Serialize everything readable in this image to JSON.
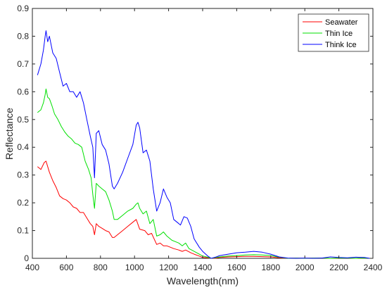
{
  "chart_data": {
    "type": "line",
    "xlabel": "Wavelength(nm)",
    "ylabel": "Reflectance",
    "xlim": [
      400,
      2400
    ],
    "ylim": [
      0,
      0.9
    ],
    "xticks": [
      400,
      600,
      800,
      1000,
      1200,
      1400,
      1600,
      1800,
      2000,
      2200,
      2400
    ],
    "yticks": [
      0,
      0.1,
      0.2,
      0.3,
      0.4,
      0.5,
      0.6,
      0.7,
      0.8,
      0.9
    ],
    "ytick_labels": [
      "0",
      "0.1",
      "0.2",
      "0.3",
      "0.4",
      "0.5",
      "0.6",
      "0.7",
      "0.8",
      "0.9"
    ],
    "grid": false,
    "legend_position": "top-right",
    "series": [
      {
        "name": "Seawater",
        "color": "#ff0000",
        "x": [
          430,
          450,
          470,
          480,
          500,
          520,
          540,
          560,
          580,
          600,
          620,
          640,
          660,
          680,
          700,
          720,
          740,
          755,
          765,
          775,
          790,
          810,
          830,
          850,
          870,
          880,
          900,
          930,
          960,
          990,
          1010,
          1030,
          1060,
          1080,
          1100,
          1130,
          1150,
          1170,
          1190,
          1210,
          1230,
          1260,
          1280,
          1300,
          1330,
          1350,
          1380,
          1400,
          1430,
          1450,
          1480,
          1500,
          1550,
          1600,
          1650,
          1700,
          1750,
          1800,
          1850,
          1900,
          1950,
          2000,
          2050,
          2100,
          2150,
          2200,
          2250,
          2300,
          2350,
          2380
        ],
        "y": [
          0.33,
          0.32,
          0.345,
          0.35,
          0.31,
          0.28,
          0.255,
          0.225,
          0.215,
          0.21,
          0.2,
          0.185,
          0.18,
          0.165,
          0.165,
          0.145,
          0.125,
          0.115,
          0.085,
          0.125,
          0.115,
          0.108,
          0.1,
          0.095,
          0.075,
          0.075,
          0.085,
          0.1,
          0.115,
          0.13,
          0.14,
          0.105,
          0.1,
          0.085,
          0.09,
          0.05,
          0.055,
          0.045,
          0.045,
          0.04,
          0.035,
          0.03,
          0.025,
          0.03,
          0.02,
          0.015,
          0.008,
          0.003,
          0.002,
          0.0,
          0.001,
          0.003,
          0.005,
          0.006,
          0.007,
          0.007,
          0.006,
          0.005,
          0.002,
          0.0,
          0.001,
          0.0,
          0.001,
          0.001,
          0.0,
          0.001,
          0.001,
          0.0,
          0.001,
          0.0
        ]
      },
      {
        "name": "Thin Ice",
        "color": "#00e000",
        "x": [
          430,
          450,
          465,
          475,
          480,
          490,
          500,
          515,
          530,
          550,
          570,
          590,
          610,
          630,
          650,
          670,
          690,
          710,
          730,
          745,
          755,
          765,
          775,
          790,
          810,
          830,
          850,
          870,
          880,
          900,
          930,
          960,
          990,
          1010,
          1020,
          1030,
          1050,
          1070,
          1090,
          1110,
          1130,
          1150,
          1170,
          1190,
          1220,
          1240,
          1260,
          1280,
          1300,
          1320,
          1350,
          1380,
          1400,
          1430,
          1450,
          1480,
          1500,
          1550,
          1600,
          1650,
          1700,
          1750,
          1800,
          1850,
          1900,
          1950,
          2000,
          2050,
          2100,
          2150,
          2200,
          2250,
          2300,
          2350,
          2380
        ],
        "y": [
          0.525,
          0.535,
          0.56,
          0.59,
          0.61,
          0.58,
          0.575,
          0.55,
          0.52,
          0.5,
          0.475,
          0.455,
          0.44,
          0.43,
          0.415,
          0.41,
          0.4,
          0.35,
          0.32,
          0.29,
          0.23,
          0.18,
          0.27,
          0.26,
          0.25,
          0.24,
          0.21,
          0.17,
          0.14,
          0.14,
          0.155,
          0.17,
          0.18,
          0.195,
          0.2,
          0.18,
          0.16,
          0.17,
          0.125,
          0.14,
          0.08,
          0.085,
          0.095,
          0.08,
          0.065,
          0.06,
          0.055,
          0.045,
          0.055,
          0.035,
          0.025,
          0.015,
          0.008,
          0.004,
          0.0,
          0.003,
          0.005,
          0.008,
          0.01,
          0.012,
          0.013,
          0.012,
          0.01,
          0.004,
          0.0,
          0.001,
          0.0,
          0.001,
          0.001,
          0.0,
          0.001,
          0.001,
          0.0,
          0.001,
          0.0
        ]
      },
      {
        "name": "Think Ice",
        "color": "#0000ff",
        "x": [
          430,
          450,
          465,
          475,
          480,
          490,
          500,
          510,
          520,
          540,
          560,
          580,
          600,
          620,
          640,
          660,
          680,
          700,
          720,
          740,
          755,
          765,
          775,
          790,
          810,
          830,
          850,
          870,
          880,
          900,
          930,
          960,
          990,
          1010,
          1020,
          1030,
          1050,
          1070,
          1090,
          1110,
          1130,
          1150,
          1170,
          1190,
          1210,
          1230,
          1250,
          1270,
          1290,
          1310,
          1330,
          1350,
          1380,
          1400,
          1430,
          1450,
          1480,
          1500,
          1550,
          1600,
          1650,
          1700,
          1750,
          1800,
          1850,
          1900,
          1950,
          2000,
          2050,
          2100,
          2150,
          2200,
          2250,
          2300,
          2350,
          2380
        ],
        "y": [
          0.66,
          0.7,
          0.75,
          0.8,
          0.82,
          0.78,
          0.8,
          0.77,
          0.74,
          0.72,
          0.67,
          0.62,
          0.63,
          0.6,
          0.6,
          0.58,
          0.6,
          0.56,
          0.5,
          0.44,
          0.4,
          0.29,
          0.45,
          0.46,
          0.41,
          0.39,
          0.34,
          0.26,
          0.25,
          0.27,
          0.31,
          0.36,
          0.41,
          0.48,
          0.49,
          0.47,
          0.38,
          0.39,
          0.35,
          0.25,
          0.17,
          0.2,
          0.25,
          0.22,
          0.2,
          0.14,
          0.13,
          0.12,
          0.15,
          0.145,
          0.115,
          0.07,
          0.04,
          0.025,
          0.008,
          0.0,
          0.005,
          0.01,
          0.015,
          0.02,
          0.022,
          0.025,
          0.022,
          0.015,
          0.005,
          0.001,
          0.0,
          0.001,
          0.0,
          0.001,
          0.005,
          0.003,
          0.002,
          0.004,
          0.003,
          0.0
        ]
      }
    ]
  }
}
